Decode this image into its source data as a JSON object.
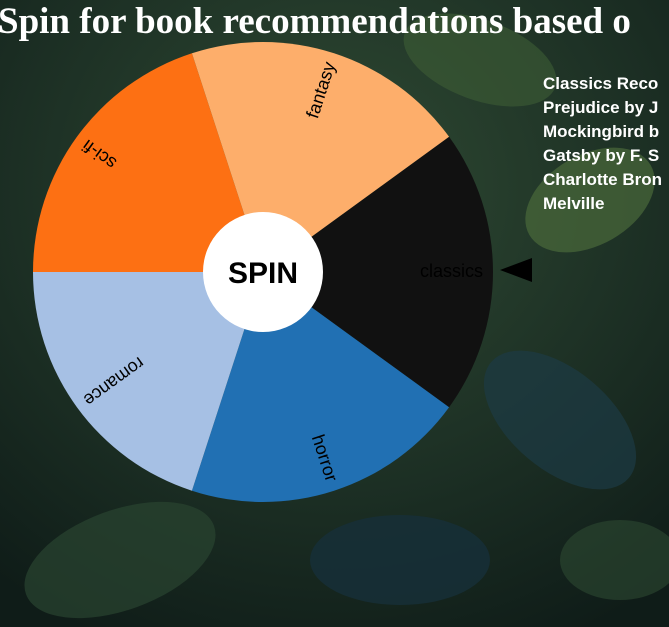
{
  "header": {
    "title": "Spin for book recommendations based o"
  },
  "wheel": {
    "button": "SPIN",
    "segments": [
      {
        "label": "classics",
        "color": "#111111"
      },
      {
        "label": "horror",
        "color": "#2170b3"
      },
      {
        "label": "romance",
        "color": "#a6c0e4"
      },
      {
        "label": "sci-fi",
        "color": "#fd7013"
      },
      {
        "label": "fantasy",
        "color": "#fdae6b"
      }
    ]
  },
  "recommendations": {
    "lines": [
      "Classics Reco",
      "Prejudice by J",
      "Mockingbird b",
      "Gatsby by F. S",
      "Charlotte Bron",
      "Melville"
    ]
  }
}
